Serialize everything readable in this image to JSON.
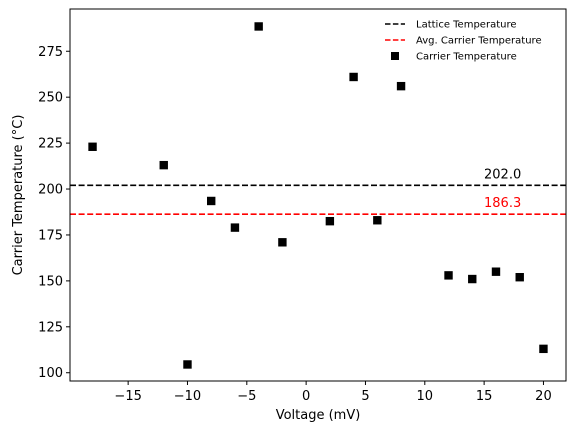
{
  "chart_data": {
    "type": "scatter",
    "xlabel": "Voltage (mV)",
    "ylabel": "Carrier Temperature ($^\\circ$C)",
    "ylabel_display": "Carrier Temperature (°C)",
    "xlim": [
      -19.9,
      21.9
    ],
    "ylim": [
      95.5,
      298
    ],
    "x_ticks": [
      -15,
      -10,
      -5,
      0,
      5,
      10,
      15,
      20
    ],
    "x_tick_labels": [
      "−15",
      "−10",
      "−5",
      "0",
      "5",
      "10",
      "15",
      "20"
    ],
    "y_ticks": [
      100,
      125,
      150,
      175,
      200,
      225,
      250,
      275
    ],
    "y_tick_labels": [
      "100",
      "125",
      "150",
      "175",
      "200",
      "225",
      "250",
      "275"
    ],
    "grid": false,
    "legend_position": "upper right",
    "series": [
      {
        "name": "Carrier Temperature",
        "marker": "square",
        "color": "#000000",
        "x": [
          -18,
          -12,
          -10,
          -8,
          -6,
          -4,
          -2,
          2,
          4,
          6,
          8,
          12,
          14,
          16,
          18,
          20
        ],
        "y": [
          223,
          213,
          104.5,
          193.5,
          179,
          288.5,
          171,
          182.5,
          261,
          183,
          256,
          153,
          151,
          155,
          152,
          113
        ]
      }
    ],
    "hlines": [
      {
        "name": "Lattice Temperature",
        "y": 202.0,
        "color": "#000000",
        "style": "dashed",
        "label": "202.0"
      },
      {
        "name": "Avg. Carrier Temperature",
        "y": 186.3,
        "color": "#ff0000",
        "style": "dashed",
        "label": "186.3"
      }
    ],
    "legend": [
      "Lattice Temperature",
      "Avg. Carrier Temperature",
      "Carrier Temperature"
    ]
  }
}
